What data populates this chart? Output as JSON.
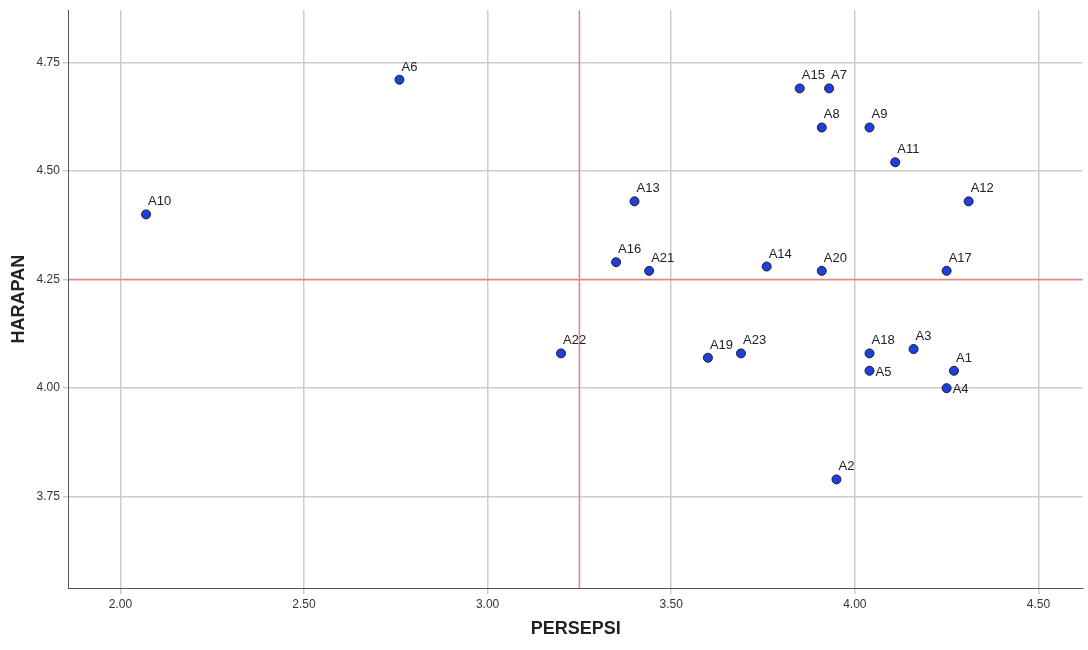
{
  "chart_data": {
    "type": "scatter",
    "xlabel": "PERSEPSI",
    "ylabel": "HARAPAN",
    "x": [
      4.27,
      3.95,
      4.16,
      4.25,
      4.04,
      2.76,
      3.93,
      3.91,
      4.04,
      2.07,
      4.11,
      4.31,
      3.4,
      3.76,
      3.85,
      3.35,
      4.25,
      4.04,
      3.6,
      3.91,
      3.44,
      3.2,
      3.69
    ],
    "series": [
      {
        "color": "#1f3fd6",
        "values": [
          4.04,
          3.79,
          4.09,
          4.0,
          4.04,
          4.71,
          4.69,
          4.6,
          4.6,
          4.4,
          4.52,
          4.43,
          4.43,
          4.28,
          4.69,
          4.29,
          4.27,
          4.08,
          4.07,
          4.27,
          4.27,
          4.08,
          4.08
        ]
      }
    ],
    "annotations": [
      {
        "text": "A1",
        "x": 4.27,
        "y": 4.04
      },
      {
        "text": "A2",
        "x": 3.95,
        "y": 3.79
      },
      {
        "text": "A3",
        "x": 4.16,
        "y": 4.09
      },
      {
        "text": "A4",
        "x": 4.25,
        "y": 4.0
      },
      {
        "text": "A5",
        "x": 4.04,
        "y": 4.04
      },
      {
        "text": "A6",
        "x": 2.76,
        "y": 4.71
      },
      {
        "text": "A7",
        "x": 3.93,
        "y": 4.69
      },
      {
        "text": "A8",
        "x": 3.91,
        "y": 4.6
      },
      {
        "text": "A9",
        "x": 4.04,
        "y": 4.6
      },
      {
        "text": "A10",
        "x": 2.07,
        "y": 4.4
      },
      {
        "text": "A11",
        "x": 4.11,
        "y": 4.52
      },
      {
        "text": "A12",
        "x": 4.31,
        "y": 4.43
      },
      {
        "text": "A13",
        "x": 3.4,
        "y": 4.43
      },
      {
        "text": "A14",
        "x": 3.76,
        "y": 4.28
      },
      {
        "text": "A15",
        "x": 3.85,
        "y": 4.69
      },
      {
        "text": "A16",
        "x": 3.35,
        "y": 4.29
      },
      {
        "text": "A17",
        "x": 4.25,
        "y": 4.27
      },
      {
        "text": "A18",
        "x": 4.04,
        "y": 4.08
      },
      {
        "text": "A19",
        "x": 3.6,
        "y": 4.07
      },
      {
        "text": "A20",
        "x": 3.91,
        "y": 4.27
      },
      {
        "text": "A21",
        "x": 3.44,
        "y": 4.27
      },
      {
        "text": "A22",
        "x": 3.2,
        "y": 4.08
      },
      {
        "text": "A23",
        "x": 3.69,
        "y": 4.08
      }
    ],
    "xlim": [
      1.86,
      4.62
    ],
    "ylim": [
      3.54,
      4.87
    ],
    "xticks": [
      {
        "value": 2,
        "label": "2.00"
      },
      {
        "value": 2.5,
        "label": "2.50"
      },
      {
        "value": 3,
        "label": "3.00"
      },
      {
        "value": 3.5,
        "label": "3.50"
      },
      {
        "value": 4,
        "label": "4.00"
      },
      {
        "value": 4.5,
        "label": "4.50"
      }
    ],
    "yticks": [
      {
        "value": 3.75,
        "label": "3.75"
      },
      {
        "value": 4,
        "label": "4.00"
      },
      {
        "value": 4.25,
        "label": "4.25"
      },
      {
        "value": 4.5,
        "label": "4.50"
      },
      {
        "value": 4.75,
        "label": "4.75"
      }
    ],
    "ref_lines": [
      {
        "axis": "x",
        "value": 3.25,
        "color": "#f08080"
      },
      {
        "axis": "y",
        "value": 4.25,
        "color": "#f08080"
      }
    ],
    "grid": true,
    "legend": false,
    "marker": "circle"
  }
}
